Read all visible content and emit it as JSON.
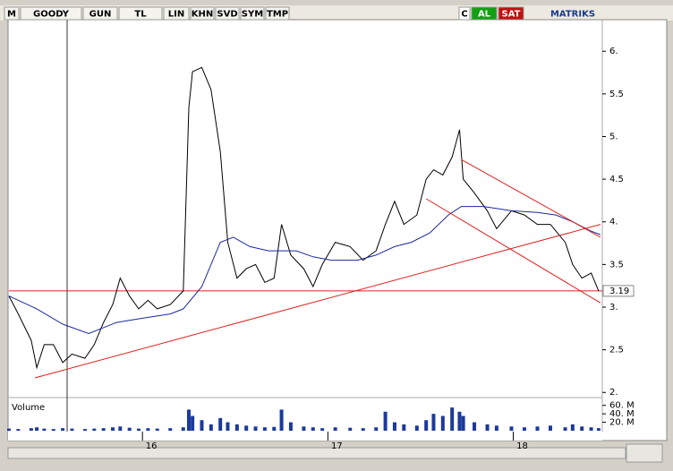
{
  "toolbar": {
    "items": [
      "M",
      "GOODY",
      "GUN",
      "TL",
      "LIN",
      "KHN",
      "SVD",
      "SYM",
      "TMP"
    ],
    "right": [
      "C",
      "AL",
      "SAT"
    ],
    "brand": "MATRIKS"
  },
  "chart_data": [
    {
      "type": "line",
      "xlim": [
        15.28,
        18.48
      ],
      "xticks": [
        16,
        17,
        18
      ],
      "ylim": [
        1.95,
        6.37
      ],
      "yticks": [
        {
          "value": 2,
          "label": "2."
        },
        2.5,
        {
          "value": 3,
          "label": "3."
        },
        3.5,
        {
          "value": 4,
          "label": "4."
        },
        4.5,
        {
          "value": 5,
          "label": "5."
        },
        5.5,
        {
          "value": 6,
          "label": "6."
        }
      ],
      "hline": {
        "value": 3.19,
        "color": "#e02020"
      },
      "series": [
        {
          "color": "#000000",
          "x": [
            15.28,
            15.33,
            15.4,
            15.43,
            15.47,
            15.52,
            15.57,
            15.62,
            15.69,
            15.74,
            15.79,
            15.84,
            15.88,
            15.93,
            15.98,
            16.03,
            16.08,
            16.15,
            16.22,
            16.25,
            16.27,
            16.32,
            16.37,
            16.42,
            16.46,
            16.51,
            16.56,
            16.61,
            16.66,
            16.71,
            16.75,
            16.8,
            16.87,
            16.92,
            16.97,
            17.04,
            17.12,
            17.19,
            17.26,
            17.31,
            17.36,
            17.41,
            17.48,
            17.53,
            17.57,
            17.62,
            17.67,
            17.71,
            17.73,
            17.79,
            17.86,
            17.91,
            17.99,
            18.06,
            18.13,
            18.2,
            18.28,
            18.32,
            18.37,
            18.42,
            18.46
          ],
          "values": [
            3.13,
            2.92,
            2.61,
            2.29,
            2.56,
            2.56,
            2.35,
            2.45,
            2.4,
            2.56,
            2.82,
            3.03,
            3.34,
            3.13,
            2.98,
            3.08,
            2.98,
            3.03,
            3.19,
            5.34,
            5.76,
            5.81,
            5.55,
            4.82,
            3.76,
            3.34,
            3.45,
            3.5,
            3.29,
            3.34,
            3.97,
            3.61,
            3.45,
            3.24,
            3.5,
            3.76,
            3.71,
            3.55,
            3.66,
            3.97,
            4.24,
            3.97,
            4.08,
            4.5,
            4.61,
            4.55,
            4.76,
            5.08,
            4.5,
            4.34,
            4.13,
            3.92,
            4.13,
            4.08,
            3.97,
            3.97,
            3.76,
            3.5,
            3.34,
            3.4,
            3.19
          ]
        },
        {
          "color": "#1a2a9a",
          "x": [
            15.28,
            15.43,
            15.57,
            15.71,
            15.86,
            16.0,
            16.15,
            16.22,
            16.32,
            16.42,
            16.49,
            16.58,
            16.68,
            16.83,
            16.92,
            17.02,
            17.16,
            17.26,
            17.36,
            17.45,
            17.55,
            17.65,
            17.72,
            17.84,
            17.99,
            18.13,
            18.23,
            18.32,
            18.42,
            18.47
          ],
          "values": [
            3.13,
            2.98,
            2.8,
            2.69,
            2.82,
            2.87,
            2.92,
            2.98,
            3.24,
            3.76,
            3.82,
            3.71,
            3.66,
            3.66,
            3.59,
            3.55,
            3.55,
            3.61,
            3.71,
            3.76,
            3.87,
            4.08,
            4.18,
            4.18,
            4.13,
            4.11,
            4.08,
            4.0,
            3.89,
            3.85
          ]
        },
        {
          "color": "#e02020",
          "x": [
            15.42,
            18.47
          ],
          "values": [
            2.17,
            3.97
          ]
        },
        {
          "color": "#e02020",
          "x": [
            17.72,
            18.47
          ],
          "values": [
            4.73,
            3.82
          ]
        },
        {
          "color": "#e02020",
          "x": [
            17.53,
            18.47
          ],
          "values": [
            4.27,
            3.05
          ]
        }
      ]
    },
    {
      "type": "bar",
      "title": "Volume",
      "color": "#1c3a9a",
      "xlim": [
        15.28,
        18.48
      ],
      "ylim": [
        0,
        70000000
      ],
      "yticks": [
        {
          "value": 60000000,
          "label": "60. M"
        },
        {
          "value": 40000000,
          "label": "40. M"
        },
        {
          "value": 20000000,
          "label": "20. M"
        }
      ],
      "x": [
        15.28,
        15.33,
        15.4,
        15.43,
        15.47,
        15.52,
        15.57,
        15.62,
        15.69,
        15.74,
        15.79,
        15.84,
        15.88,
        15.93,
        15.98,
        16.03,
        16.08,
        16.15,
        16.22,
        16.25,
        16.27,
        16.32,
        16.37,
        16.42,
        16.46,
        16.51,
        16.56,
        16.61,
        16.66,
        16.71,
        16.75,
        16.8,
        16.87,
        16.92,
        16.97,
        17.04,
        17.12,
        17.19,
        17.26,
        17.31,
        17.36,
        17.41,
        17.48,
        17.53,
        17.57,
        17.62,
        17.67,
        17.71,
        17.73,
        17.79,
        17.86,
        17.91,
        17.99,
        18.06,
        18.13,
        18.2,
        18.28,
        18.32,
        18.37,
        18.42,
        18.46
      ],
      "values": [
        5000000,
        4000000,
        6000000,
        8000000,
        5000000,
        4000000,
        6000000,
        5000000,
        4000000,
        5000000,
        6000000,
        8000000,
        10000000,
        7000000,
        5000000,
        6000000,
        5000000,
        6000000,
        8000000,
        50000000,
        35000000,
        25000000,
        15000000,
        30000000,
        20000000,
        15000000,
        12000000,
        10000000,
        8000000,
        9000000,
        50000000,
        20000000,
        10000000,
        8000000,
        6000000,
        8000000,
        7000000,
        6000000,
        8000000,
        45000000,
        20000000,
        15000000,
        12000000,
        25000000,
        40000000,
        35000000,
        55000000,
        45000000,
        35000000,
        20000000,
        15000000,
        12000000,
        10000000,
        8000000,
        10000000,
        12000000,
        8000000,
        15000000,
        10000000,
        8000000,
        6000000
      ]
    }
  ]
}
